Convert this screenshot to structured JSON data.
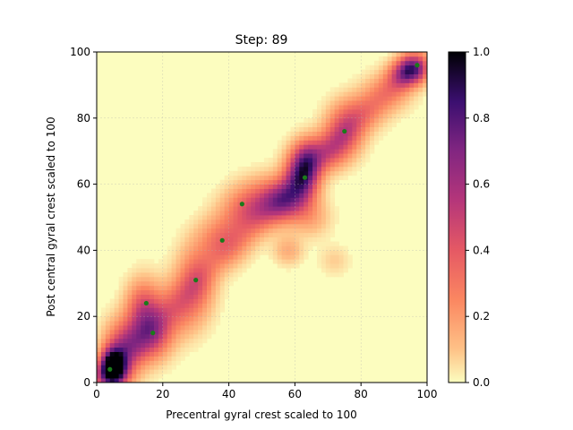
{
  "chart_data": {
    "type": "heatmap",
    "title": "Step: 89",
    "xlabel": "Precentral gyral crest scaled to 100",
    "ylabel": "Post central gyral crest scaled to 100",
    "xlim": [
      0,
      100
    ],
    "ylim": [
      0,
      100
    ],
    "x_ticks": [
      "0",
      "20",
      "40",
      "60",
      "80",
      "100"
    ],
    "y_ticks": [
      "0",
      "20",
      "40",
      "60",
      "80",
      "100"
    ],
    "colorbar": {
      "colormap": "magma_r",
      "range": [
        0.0,
        1.0
      ],
      "ticks": [
        "0.0",
        "0.2",
        "0.4",
        "0.6",
        "0.8",
        "1.0"
      ]
    },
    "grid": true,
    "points": [
      {
        "x": 4,
        "y": 4
      },
      {
        "x": 15,
        "y": 24
      },
      {
        "x": 17,
        "y": 15
      },
      {
        "x": 30,
        "y": 31
      },
      {
        "x": 38,
        "y": 43
      },
      {
        "x": 44,
        "y": 54
      },
      {
        "x": 63,
        "y": 62
      },
      {
        "x": 75,
        "y": 76
      },
      {
        "x": 97,
        "y": 96
      }
    ],
    "point_color": "#1a7a1a",
    "density_blobs": [
      {
        "x": 5,
        "y": 5,
        "sx": 2.5,
        "sy": 3.5,
        "v": 1.0
      },
      {
        "x": 8,
        "y": 10,
        "sx": 4,
        "sy": 6,
        "v": 0.35
      },
      {
        "x": 4,
        "y": 2,
        "sx": 4,
        "sy": 3,
        "v": 0.35
      },
      {
        "x": 14,
        "y": 22,
        "sx": 3.5,
        "sy": 6,
        "v": 0.42
      },
      {
        "x": 18,
        "y": 15,
        "sx": 3.5,
        "sy": 5,
        "v": 0.3
      },
      {
        "x": 12,
        "y": 12,
        "sx": 5,
        "sy": 5,
        "v": 0.25
      },
      {
        "x": 30,
        "y": 31,
        "sx": 4,
        "sy": 7,
        "v": 0.33
      },
      {
        "x": 24,
        "y": 22,
        "sx": 5,
        "sy": 6,
        "v": 0.25
      },
      {
        "x": 38,
        "y": 43,
        "sx": 5,
        "sy": 5,
        "v": 0.3
      },
      {
        "x": 45,
        "y": 52,
        "sx": 5,
        "sy": 5,
        "v": 0.3
      },
      {
        "x": 52,
        "y": 55,
        "sx": 5,
        "sy": 5,
        "v": 0.3
      },
      {
        "x": 57,
        "y": 55,
        "sx": 4,
        "sy": 4,
        "v": 0.4
      },
      {
        "x": 62,
        "y": 62,
        "sx": 3.5,
        "sy": 5.5,
        "v": 0.7
      },
      {
        "x": 64,
        "y": 68,
        "sx": 3,
        "sy": 4,
        "v": 0.35
      },
      {
        "x": 70,
        "y": 70,
        "sx": 4,
        "sy": 4,
        "v": 0.3
      },
      {
        "x": 75,
        "y": 76,
        "sx": 4,
        "sy": 5,
        "v": 0.38
      },
      {
        "x": 80,
        "y": 82,
        "sx": 5,
        "sy": 4,
        "v": 0.2
      },
      {
        "x": 88,
        "y": 88,
        "sx": 5,
        "sy": 4,
        "v": 0.2
      },
      {
        "x": 96,
        "y": 95,
        "sx": 3,
        "sy": 3,
        "v": 0.7
      },
      {
        "x": 92,
        "y": 93,
        "sx": 3,
        "sy": 3,
        "v": 0.3
      },
      {
        "x": 58,
        "y": 40,
        "sx": 3,
        "sy": 3,
        "v": 0.15
      },
      {
        "x": 72,
        "y": 37,
        "sx": 3,
        "sy": 3,
        "v": 0.08
      },
      {
        "x": 65,
        "y": 50,
        "sx": 4,
        "sy": 4,
        "v": 0.15
      }
    ]
  }
}
